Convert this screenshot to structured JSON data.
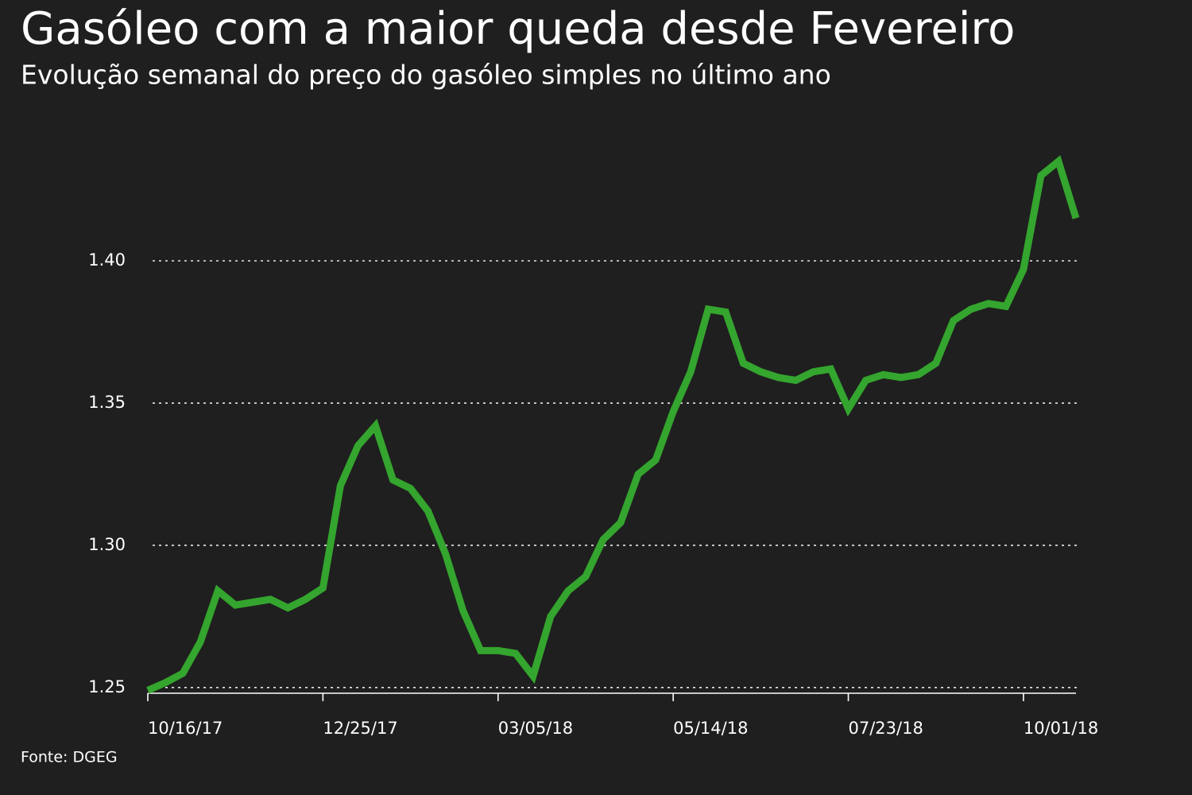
{
  "chart_data": {
    "type": "line",
    "title": "Gasóleo com a maior queda desde Fevereiro",
    "subtitle": "Evolução semanal do preço do gasóleo simples no último ano",
    "source": "Fonte: DGEG",
    "categories": [
      "10/16/17",
      null,
      null,
      null,
      null,
      null,
      null,
      null,
      null,
      null,
      "12/25/17",
      null,
      null,
      null,
      null,
      null,
      null,
      null,
      null,
      null,
      "03/05/18",
      null,
      null,
      null,
      null,
      null,
      null,
      null,
      null,
      null,
      "05/14/18",
      null,
      null,
      null,
      null,
      null,
      null,
      null,
      null,
      null,
      "07/23/18",
      null,
      null,
      null,
      null,
      null,
      null,
      null,
      null,
      null,
      "10/01/18",
      null,
      null,
      null
    ],
    "values": [
      1.249,
      1.2517,
      1.255,
      1.266,
      1.284,
      1.279,
      1.28,
      1.281,
      1.278,
      1.281,
      1.285,
      1.321,
      1.335,
      1.342,
      1.323,
      1.32,
      1.312,
      1.297,
      1.277,
      1.263,
      1.263,
      1.262,
      1.254,
      1.275,
      1.284,
      1.289,
      1.302,
      1.308,
      1.325,
      1.33,
      1.347,
      1.361,
      1.383,
      1.382,
      1.364,
      1.361,
      1.359,
      1.358,
      1.361,
      1.362,
      1.348,
      1.358,
      1.36,
      1.359,
      1.36,
      1.364,
      1.379,
      1.383,
      1.385,
      1.384,
      1.397,
      1.43,
      1.435,
      1.415
    ],
    "color": "#34a52e",
    "ylim": [
      1.248,
      1.44
    ],
    "yticks": [
      1.25,
      {
        "value": 1.3,
        "label": "1.30"
      },
      1.35,
      {
        "value": 1.4,
        "label": "1.40"
      }
    ],
    "grid": true
  }
}
